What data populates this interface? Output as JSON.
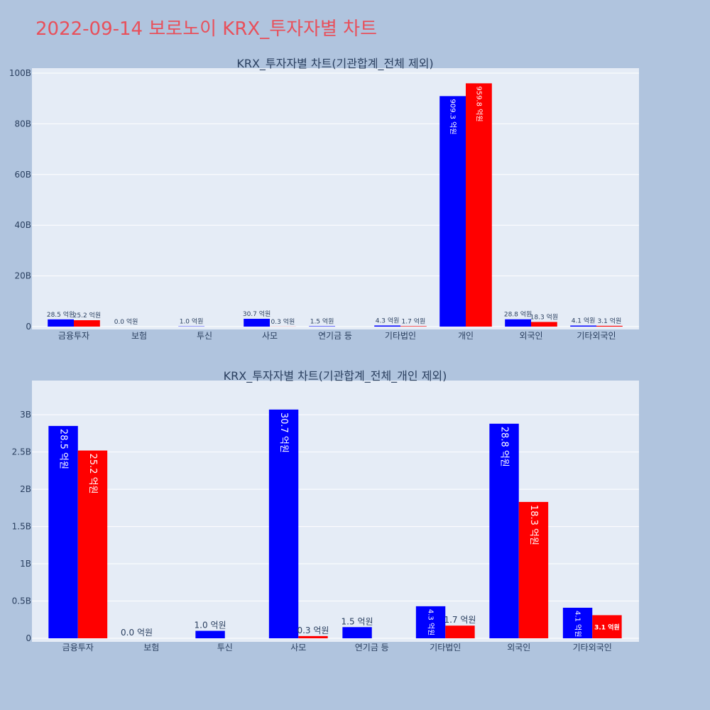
{
  "page": {
    "title": "2022-09-14 보로노이 KRX_투자자별 차트",
    "colors": {
      "background": "#b0c4de",
      "plot_bg": "#e5ecf6",
      "title": "#e8505b",
      "series_1": "#0000ff",
      "series_2": "#ff0000"
    }
  },
  "chart_data": [
    {
      "type": "bar",
      "title": "KRX_투자자별 차트(기관합계_전체 제외)",
      "xlabel": "",
      "ylabel": "",
      "categories": [
        "금융투자",
        "보험",
        "투신",
        "사모",
        "연기금 등",
        "기타법인",
        "개인",
        "외국인",
        "기타외국인"
      ],
      "ylim": [
        0,
        100000000000
      ],
      "yticks": [
        0,
        20000000000,
        40000000000,
        60000000000,
        80000000000,
        100000000000
      ],
      "ytick_labels": [
        "0",
        "20B",
        "40B",
        "60B",
        "80B",
        "100B"
      ],
      "grid": true,
      "legend": "none",
      "series": [
        {
          "color": "#0000ff",
          "values": [
            2850000000,
            0,
            100000000,
            3070000000,
            150000000,
            430000000,
            90930000000,
            2880000000,
            410000000
          ],
          "labels": [
            "28.5 억원",
            "0.0 억원",
            "1.0 억원",
            "30.7 억원",
            "1.5 억원",
            "4.3 억원",
            "909.3 억원",
            "28.8 억원",
            "4.1 억원"
          ]
        },
        {
          "color": "#ff0000",
          "values": [
            2520000000,
            null,
            null,
            30000000,
            null,
            170000000,
            95980000000,
            1830000000,
            310000000
          ],
          "labels": [
            "25.2 억원",
            "",
            "",
            "0.3 억원",
            "",
            "1.7 억원",
            "959.8 억원",
            "18.3 억원",
            "3.1 억원"
          ]
        }
      ]
    },
    {
      "type": "bar",
      "title": "KRX_투자자별 차트(기관합계_전체_개인 제외)",
      "xlabel": "",
      "ylabel": "",
      "categories": [
        "금융투자",
        "보험",
        "투신",
        "사모",
        "연기금 등",
        "기타법인",
        "외국인",
        "기타외국인"
      ],
      "ylim": [
        0,
        3240000000
      ],
      "yticks": [
        0,
        500000000,
        1000000000,
        1500000000,
        2000000000,
        2500000000,
        3000000000
      ],
      "ytick_labels": [
        "0",
        "0.5B",
        "1B",
        "1.5B",
        "2B",
        "2.5B",
        "3B"
      ],
      "grid": true,
      "legend": "none",
      "series": [
        {
          "color": "#0000ff",
          "values": [
            2850000000,
            0,
            100000000,
            3070000000,
            150000000,
            430000000,
            2880000000,
            410000000
          ],
          "labels": [
            "28.5 억원",
            "0.0 억원",
            "1.0 억원",
            "30.7 억원",
            "1.5 억원",
            "4.3 억원",
            "28.8 억원",
            "4.1 억원"
          ]
        },
        {
          "color": "#ff0000",
          "values": [
            2520000000,
            null,
            null,
            30000000,
            null,
            170000000,
            1830000000,
            310000000
          ],
          "labels": [
            "25.2 억원",
            "",
            "",
            "0.3 억원",
            "",
            "1.7 억원",
            "18.3 억원",
            "3.1 억원"
          ]
        }
      ]
    }
  ]
}
